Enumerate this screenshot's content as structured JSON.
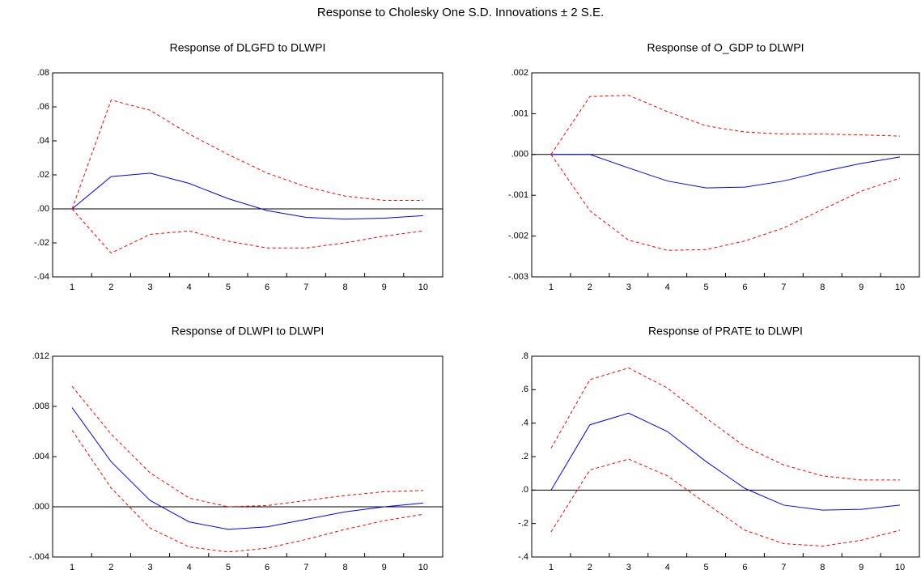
{
  "title": "Response to Cholesky One S.D. Innovations ± 2 S.E.",
  "chart_data": [
    {
      "type": "line",
      "title": "Response of DLGFD to DLWPI",
      "categories": [
        1,
        2,
        3,
        4,
        5,
        6,
        7,
        8,
        9,
        10
      ],
      "ylim": [
        -0.04,
        0.08
      ],
      "yticks": [
        {
          "value": -0.04,
          "label": "-.04"
        },
        {
          "value": -0.02,
          "label": "-.02"
        },
        {
          "value": 0,
          "label": ".00"
        },
        {
          "value": 0.02,
          "label": ".02"
        },
        {
          "value": 0.04,
          "label": ".04"
        },
        {
          "value": 0.06,
          "label": ".06"
        },
        {
          "value": 0.08,
          "label": ".08"
        }
      ],
      "series": [
        {
          "color": "#0000ff",
          "dashed": false,
          "values": [
            0,
            0.019,
            0.021,
            0.015,
            0.006,
            -0.001,
            -0.005,
            -0.006,
            -0.0055,
            -0.004
          ]
        },
        {
          "color": "#ff0000",
          "dashed": true,
          "values": [
            0,
            0.064,
            0.058,
            0.044,
            0.032,
            0.021,
            0.013,
            0.0075,
            0.005,
            0.005
          ]
        },
        {
          "color": "#ff0000",
          "dashed": true,
          "values": [
            0,
            -0.026,
            -0.015,
            -0.013,
            -0.019,
            -0.023,
            -0.023,
            -0.02,
            -0.016,
            -0.013
          ]
        }
      ]
    },
    {
      "type": "line",
      "title": "Response of O_GDP to DLWPI",
      "categories": [
        1,
        2,
        3,
        4,
        5,
        6,
        7,
        8,
        9,
        10
      ],
      "ylim": [
        -0.003,
        0.002
      ],
      "yticks": [
        {
          "value": -0.003,
          "label": "-.003"
        },
        {
          "value": -0.002,
          "label": "-.002"
        },
        {
          "value": -0.001,
          "label": "-.001"
        },
        {
          "value": 0,
          "label": ".000"
        },
        {
          "value": 0.001,
          "label": ".001"
        },
        {
          "value": 0.002,
          "label": ".002"
        }
      ],
      "series": [
        {
          "color": "#0000ff",
          "dashed": false,
          "values": [
            0,
            0,
            -0.00033,
            -0.00065,
            -0.00082,
            -0.0008,
            -0.00065,
            -0.00042,
            -0.00022,
            -6e-05
          ]
        },
        {
          "color": "#ff0000",
          "dashed": true,
          "values": [
            0,
            0.00142,
            0.00145,
            0.00105,
            0.0007,
            0.00055,
            0.0005,
            0.0005,
            0.00048,
            0.00045
          ]
        },
        {
          "color": "#ff0000",
          "dashed": true,
          "values": [
            0,
            -0.00138,
            -0.0021,
            -0.00235,
            -0.00233,
            -0.00212,
            -0.0018,
            -0.00135,
            -0.0009,
            -0.00058
          ]
        }
      ]
    },
    {
      "type": "line",
      "title": "Response of DLWPI to DLWPI",
      "categories": [
        1,
        2,
        3,
        4,
        5,
        6,
        7,
        8,
        9,
        10
      ],
      "ylim": [
        -0.004,
        0.012
      ],
      "yticks": [
        {
          "value": -0.004,
          "label": "-.004"
        },
        {
          "value": 0,
          "label": ".000"
        },
        {
          "value": 0.004,
          "label": ".004"
        },
        {
          "value": 0.008,
          "label": ".008"
        },
        {
          "value": 0.012,
          "label": ".012"
        }
      ],
      "series": [
        {
          "color": "#0000ff",
          "dashed": false,
          "values": [
            0.0079,
            0.0036,
            0.0005,
            -0.0012,
            -0.0018,
            -0.0016,
            -0.001,
            -0.0004,
            0,
            0.0003
          ]
        },
        {
          "color": "#ff0000",
          "dashed": true,
          "values": [
            0.0096,
            0.0058,
            0.0027,
            0.0007,
            0,
            0.0001,
            0.0005,
            0.0009,
            0.0012,
            0.0013
          ]
        },
        {
          "color": "#ff0000",
          "dashed": true,
          "values": [
            0.0061,
            0.0015,
            -0.0017,
            -0.0032,
            -0.0036,
            -0.0033,
            -0.0026,
            -0.0018,
            -0.0011,
            -0.0006
          ]
        }
      ]
    },
    {
      "type": "line",
      "title": "Response of PRATE to DLWPI",
      "categories": [
        1,
        2,
        3,
        4,
        5,
        6,
        7,
        8,
        9,
        10
      ],
      "ylim": [
        -0.4,
        0.8
      ],
      "yticks": [
        {
          "value": -0.4,
          "label": "-.4"
        },
        {
          "value": -0.2,
          "label": "-.2"
        },
        {
          "value": 0,
          "label": ".0"
        },
        {
          "value": 0.2,
          "label": ".2"
        },
        {
          "value": 0.4,
          "label": ".4"
        },
        {
          "value": 0.6,
          "label": ".6"
        },
        {
          "value": 0.8,
          "label": ".8"
        }
      ],
      "series": [
        {
          "color": "#0000ff",
          "dashed": false,
          "values": [
            0,
            0.39,
            0.46,
            0.35,
            0.17,
            0.01,
            -0.09,
            -0.12,
            -0.115,
            -0.09
          ]
        },
        {
          "color": "#ff0000",
          "dashed": true,
          "values": [
            0.25,
            0.66,
            0.73,
            0.61,
            0.43,
            0.26,
            0.15,
            0.085,
            0.06,
            0.06
          ]
        },
        {
          "color": "#ff0000",
          "dashed": true,
          "values": [
            -0.25,
            0.12,
            0.185,
            0.085,
            -0.08,
            -0.24,
            -0.32,
            -0.335,
            -0.3,
            -0.24
          ]
        }
      ]
    }
  ]
}
